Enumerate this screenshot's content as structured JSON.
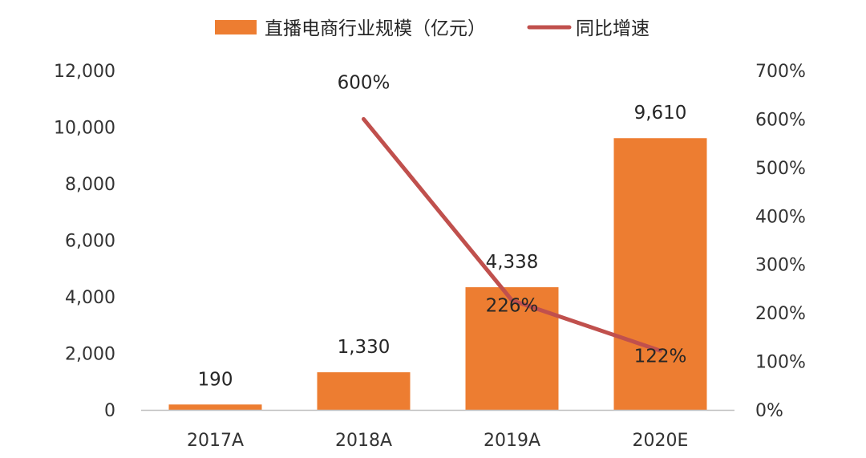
{
  "chart_data": {
    "type": "bar",
    "categories": [
      "2017A",
      "2018A",
      "2019A",
      "2020E"
    ],
    "series": [
      {
        "name": "直播电商行业规模（亿元）",
        "type": "bar",
        "axis": "left",
        "color": "#ED7D31",
        "values": [
          190,
          1330,
          4338,
          9610
        ],
        "data_labels": [
          "190",
          "1,330",
          "4,338",
          "9,610"
        ]
      },
      {
        "name": "同比增速",
        "type": "line",
        "axis": "right",
        "color": "#C0504D",
        "values": [
          null,
          600,
          226,
          122
        ],
        "data_labels": [
          null,
          "600%",
          "226%",
          "122%"
        ]
      }
    ],
    "y_left": {
      "min": 0,
      "max": 12000,
      "ticks": [
        0,
        2000,
        4000,
        6000,
        8000,
        10000,
        12000
      ],
      "tick_labels": [
        "0",
        "2,000",
        "4,000",
        "6,000",
        "8,000",
        "10,000",
        "12,000"
      ]
    },
    "y_right": {
      "min": 0,
      "max": 700,
      "unit": "%",
      "ticks": [
        0,
        100,
        200,
        300,
        400,
        500,
        600,
        700
      ],
      "tick_labels": [
        "0%",
        "100%",
        "200%",
        "300%",
        "400%",
        "500%",
        "600%",
        "700%"
      ]
    },
    "grid": false,
    "legend_position": "top-center"
  }
}
